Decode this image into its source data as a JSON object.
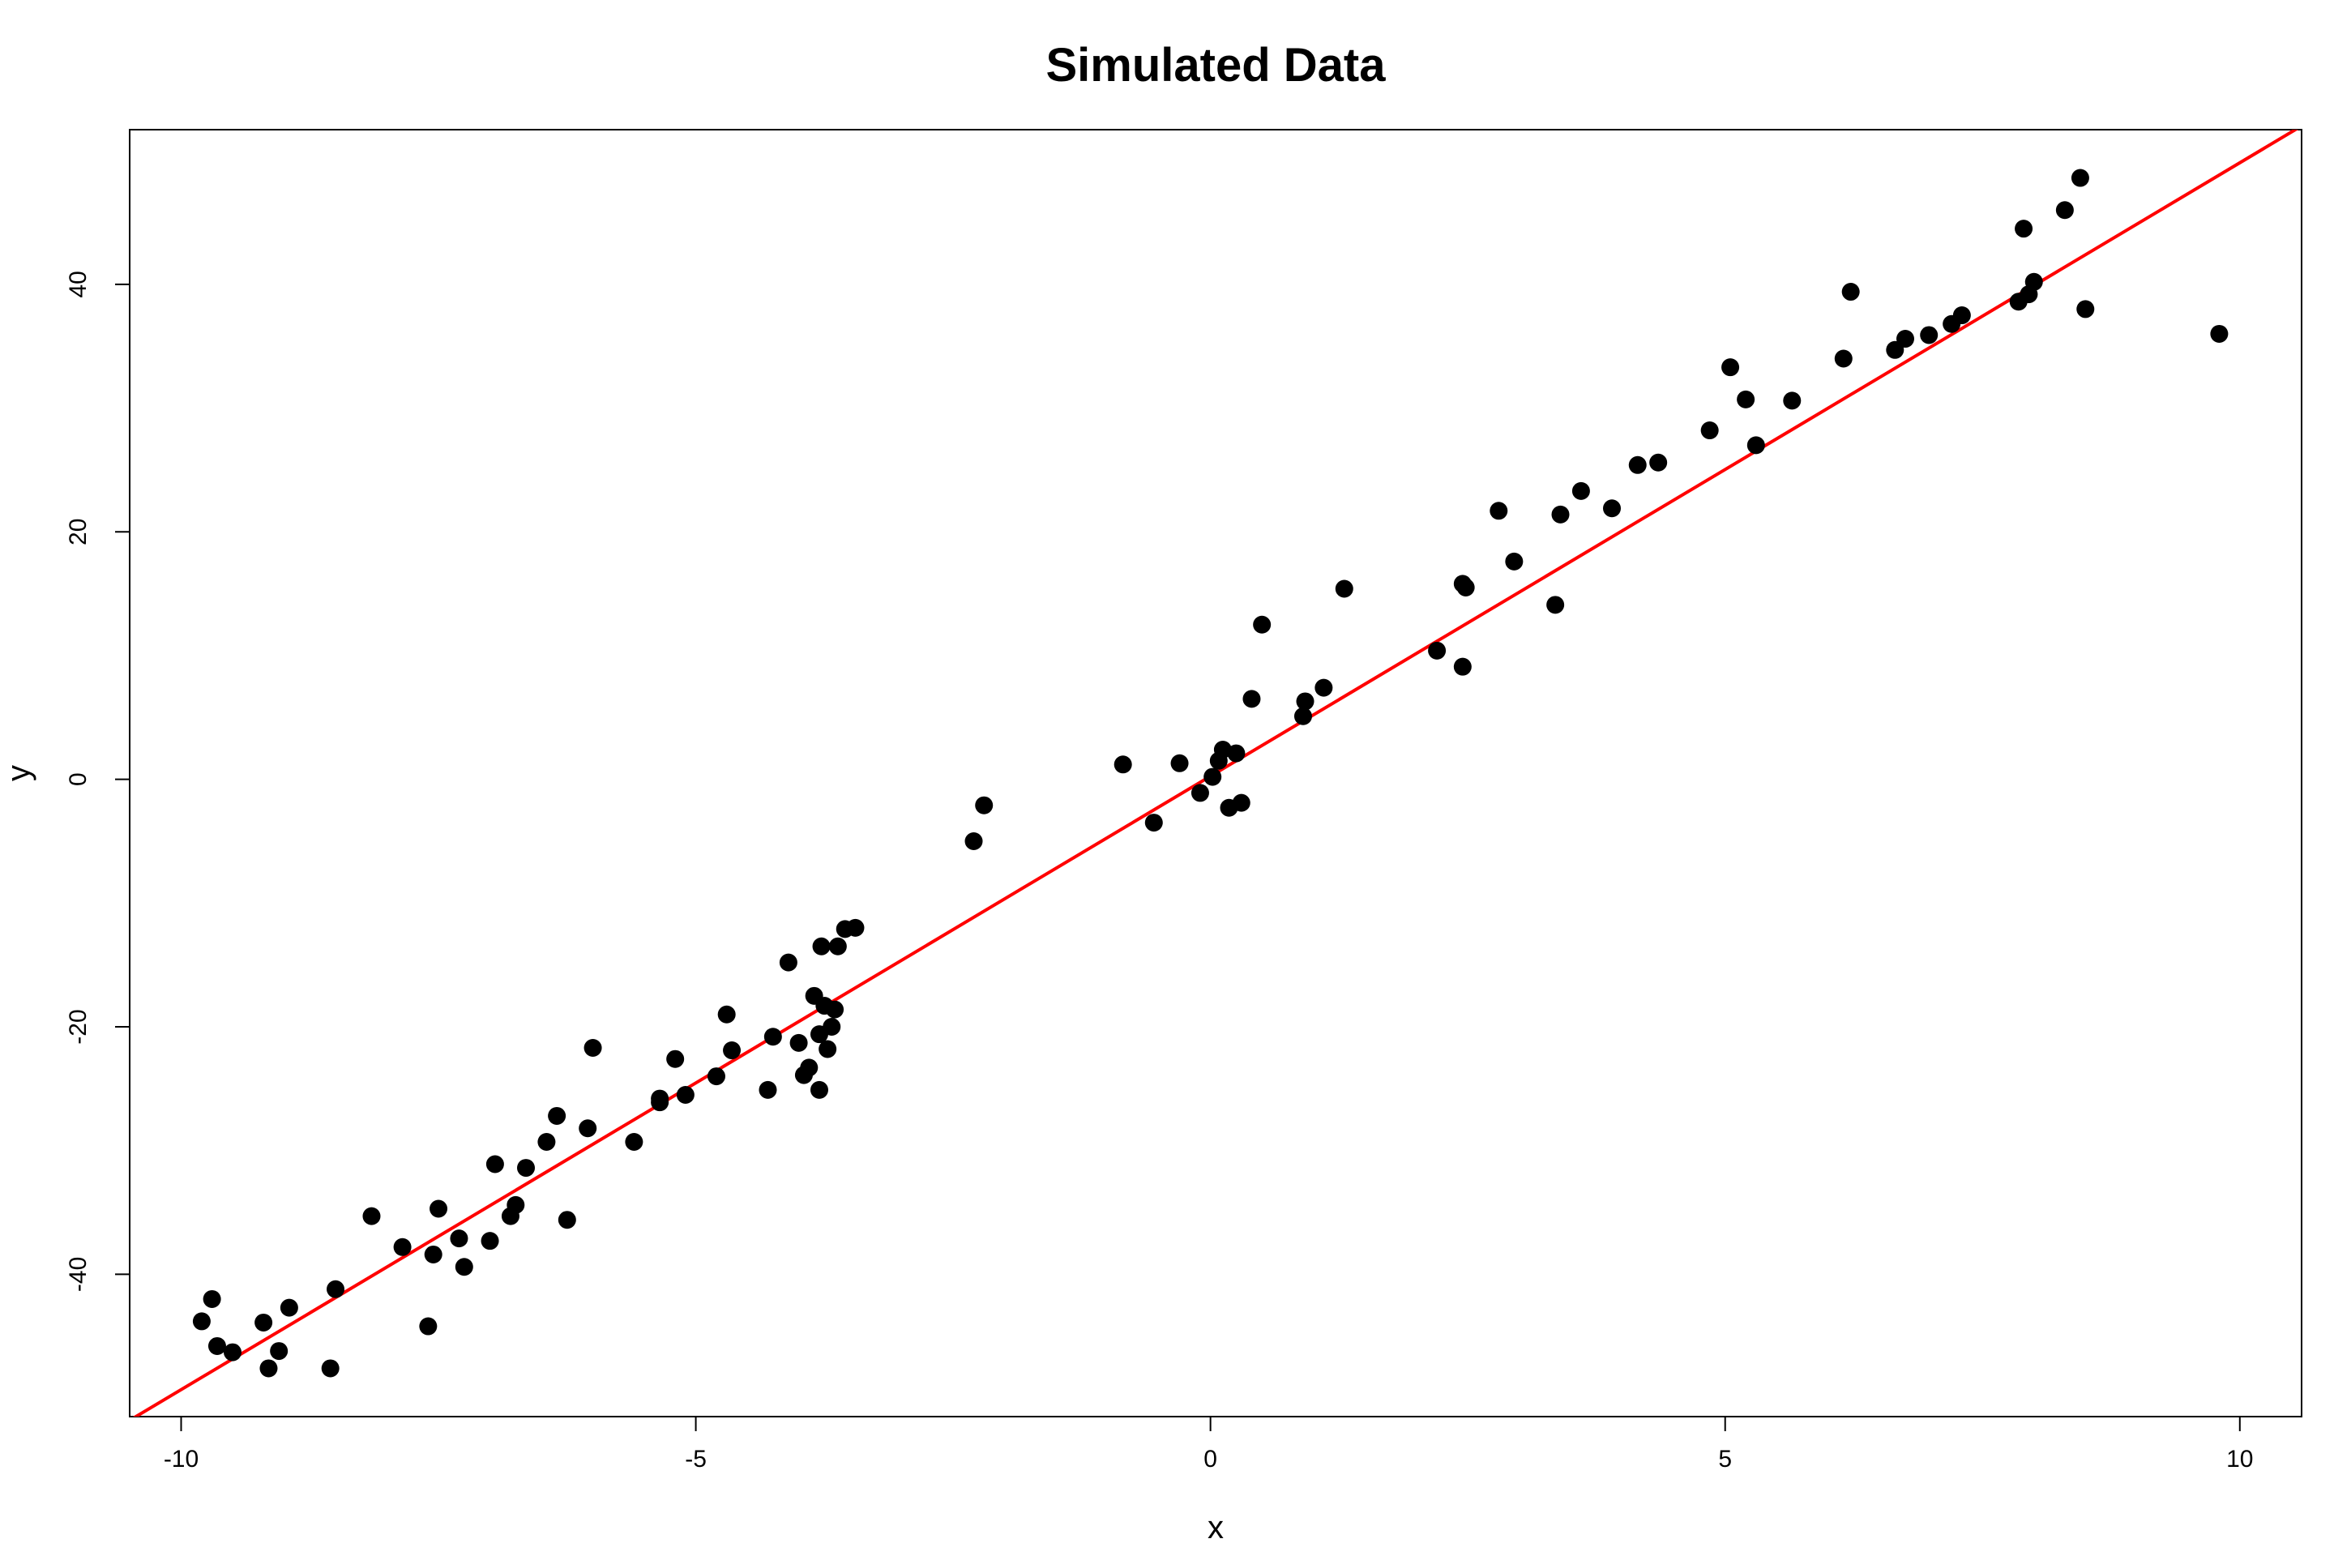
{
  "chart_data": {
    "type": "scatter",
    "title": "Simulated Data",
    "xlabel": "x",
    "ylabel": "y",
    "xlim": [
      -10.5,
      10.6
    ],
    "ylim": [
      -51.5,
      52.5
    ],
    "xticks": [
      -10,
      -5,
      0,
      5,
      10
    ],
    "xtick_labels": [
      "-10",
      "-5",
      "0",
      "5",
      "10"
    ],
    "yticks": [
      -40,
      -20,
      0,
      20,
      40
    ],
    "ytick_labels": [
      "-40",
      "-20",
      "0",
      "20",
      "40"
    ],
    "grid": false,
    "colors": {
      "points": "#000000",
      "fit_line": "#ff0000",
      "axes": "#000000",
      "background": "#ffffff"
    },
    "series": [
      {
        "type": "scatter",
        "x": [
          -9.8,
          -9.7,
          -9.65,
          -9.5,
          -9.2,
          -9.15,
          -9.05,
          -8.95,
          -8.55,
          -8.5,
          -8.15,
          -7.85,
          -7.6,
          -7.55,
          -7.5,
          -7.3,
          -7.25,
          -7.0,
          -6.95,
          -6.8,
          -6.75,
          -6.65,
          -6.45,
          -6.35,
          -6.25,
          -6.05,
          -6.0,
          -5.6,
          -5.35,
          -5.35,
          -5.2,
          -5.1,
          -4.8,
          -4.7,
          -4.65,
          -4.3,
          -4.25,
          -4.1,
          -4.0,
          -3.95,
          -3.9,
          -3.85,
          -3.8,
          -3.8,
          -3.78,
          -3.75,
          -3.72,
          -3.68,
          -3.65,
          -3.62,
          -3.55,
          -3.45,
          -2.3,
          -2.2,
          -0.85,
          -0.55,
          -0.3,
          -0.1,
          0.02,
          0.08,
          0.12,
          0.18,
          0.25,
          0.3,
          0.4,
          0.5,
          0.9,
          0.92,
          1.1,
          1.3,
          2.2,
          2.45,
          2.45,
          2.48,
          2.8,
          2.95,
          3.35,
          3.4,
          3.6,
          3.9,
          4.15,
          4.35,
          4.85,
          5.05,
          5.2,
          5.3,
          5.65,
          6.15,
          6.22,
          6.65,
          6.75,
          6.98,
          7.2,
          7.3,
          7.85,
          7.9,
          7.95,
          8.0,
          8.3,
          8.45,
          8.5,
          9.8
        ],
        "y": [
          -43.8,
          -42.0,
          -45.8,
          -46.3,
          -43.9,
          -47.6,
          -46.2,
          -42.7,
          -47.6,
          -41.2,
          -35.3,
          -37.8,
          -44.2,
          -38.4,
          -34.7,
          -37.1,
          -39.4,
          -37.3,
          -31.1,
          -35.3,
          -34.4,
          -31.4,
          -29.3,
          -27.2,
          -35.6,
          -28.2,
          -21.7,
          -29.3,
          -25.8,
          -26.1,
          -22.6,
          -25.5,
          -24.0,
          -19.0,
          -21.9,
          -25.1,
          -20.8,
          -14.8,
          -21.3,
          -23.9,
          -23.3,
          -17.5,
          -20.6,
          -25.1,
          -13.5,
          -18.3,
          -21.8,
          -20.0,
          -18.6,
          -13.5,
          -12.1,
          -12.0,
          -5.0,
          -2.1,
          1.2,
          -3.5,
          1.3,
          -1.1,
          0.2,
          1.5,
          2.4,
          -2.3,
          2.1,
          -1.9,
          6.5,
          12.5,
          5.1,
          6.3,
          7.4,
          15.4,
          10.4,
          9.1,
          15.8,
          15.5,
          21.7,
          17.6,
          14.1,
          21.4,
          23.3,
          21.9,
          25.4,
          25.6,
          28.2,
          33.3,
          30.7,
          27.0,
          30.6,
          34.0,
          39.4,
          34.7,
          35.6,
          35.9,
          36.8,
          37.5,
          38.6,
          44.5,
          39.2,
          40.2,
          46.0,
          48.6,
          38.0,
          36.0
        ],
        "color": "#000000"
      },
      {
        "type": "line",
        "x": [
          -10.5,
          10.6
        ],
        "y": [
          -51.8,
          52.8
        ],
        "color": "#ff0000"
      }
    ]
  }
}
